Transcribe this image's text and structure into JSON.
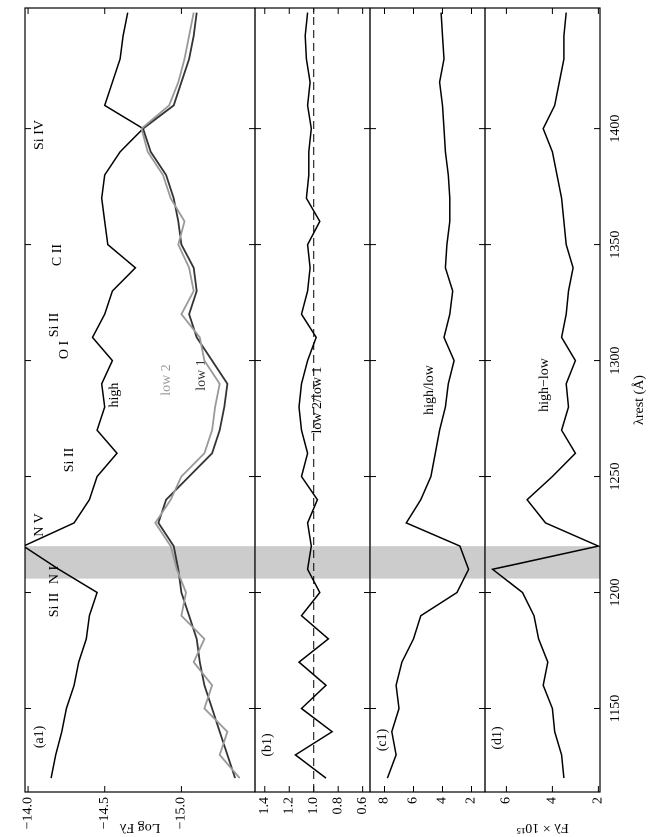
{
  "chart_data": [
    {
      "type": "line",
      "label": "(a1)",
      "ylabel": "Log Fλ",
      "x": [
        1120,
        1130,
        1140,
        1150,
        1160,
        1170,
        1180,
        1190,
        1200,
        1210,
        1220,
        1230,
        1240,
        1250,
        1260,
        1270,
        1280,
        1290,
        1300,
        1310,
        1320,
        1330,
        1340,
        1350,
        1360,
        1370,
        1380,
        1390,
        1400,
        1410,
        1420,
        1430,
        1440,
        1450
      ],
      "xlim": [
        1114,
        1452
      ],
      "xticks": [
        1150,
        1200,
        1250,
        1300,
        1350,
        1400
      ],
      "ylim": [
        -15.48,
        -13.98
      ],
      "yticks": [
        {
          "value": -15.0,
          "label": "−15.0"
        },
        {
          "value": -14.5,
          "label": "−14.5"
        },
        {
          "value": -14.0,
          "label": "−14.0"
        }
      ],
      "shaded_range": [
        1206,
        1220
      ],
      "series": [
        {
          "name": "high",
          "color": "#000000",
          "values": [
            -14.15,
            -14.18,
            -14.22,
            -14.25,
            -14.3,
            -14.33,
            -14.38,
            -14.4,
            -14.45,
            -14.2,
            -13.97,
            -14.3,
            -14.4,
            -14.45,
            -14.58,
            -14.45,
            -14.5,
            -14.48,
            -14.55,
            -14.42,
            -14.5,
            -14.55,
            -14.7,
            -14.52,
            -14.5,
            -14.48,
            -14.5,
            -14.6,
            -14.75,
            -14.5,
            -14.55,
            -14.6,
            -14.62,
            -14.65
          ]
        },
        {
          "name": "low 1",
          "color": "#333333",
          "values": [
            -15.35,
            -15.3,
            -15.25,
            -15.2,
            -15.15,
            -15.12,
            -15.1,
            -15.05,
            -15.0,
            -14.98,
            -14.95,
            -14.85,
            -14.9,
            -15.05,
            -15.2,
            -15.25,
            -15.28,
            -15.3,
            -15.2,
            -15.1,
            -15.05,
            -15.1,
            -15.08,
            -15.0,
            -14.98,
            -14.95,
            -14.9,
            -14.8,
            -14.75,
            -14.95,
            -15.0,
            -15.05,
            -15.08,
            -15.1
          ]
        },
        {
          "name": "low 2",
          "color": "#999999",
          "values": [
            -15.38,
            -15.25,
            -15.3,
            -15.15,
            -15.2,
            -15.08,
            -15.15,
            -15.0,
            -15.03,
            -14.97,
            -14.93,
            -14.83,
            -14.93,
            -15.0,
            -15.15,
            -15.2,
            -15.22,
            -15.25,
            -15.15,
            -15.12,
            -15.0,
            -15.08,
            -15.05,
            -14.98,
            -15.02,
            -14.93,
            -14.88,
            -14.78,
            -14.74,
            -14.92,
            -14.98,
            -15.02,
            -15.05,
            -15.08
          ]
        }
      ],
      "annotations": [
        "Si II",
        "N I",
        "N V",
        "Si II",
        "O I",
        "Si II",
        "C II",
        "Si IV"
      ]
    },
    {
      "type": "line",
      "label": "(b1)",
      "x": [
        1120,
        1130,
        1140,
        1150,
        1160,
        1170,
        1180,
        1190,
        1200,
        1210,
        1220,
        1230,
        1240,
        1250,
        1260,
        1270,
        1280,
        1290,
        1300,
        1310,
        1320,
        1330,
        1340,
        1350,
        1360,
        1370,
        1380,
        1390,
        1400,
        1410,
        1420,
        1430,
        1440,
        1450
      ],
      "xlim": [
        1114,
        1452
      ],
      "xticks": [
        1150,
        1200,
        1250,
        1300,
        1350,
        1400
      ],
      "ylim": [
        0.54,
        1.48
      ],
      "yticks": [
        0.6,
        0.8,
        {
          "value": 1,
          "label": "1.0"
        },
        1.2,
        1.4
      ],
      "shaded_range": [
        1206,
        1220
      ],
      "reference_line": 1,
      "series": [
        {
          "name": "low 2/low 1",
          "color": "#000000",
          "values": [
            0.9,
            1.15,
            0.85,
            1.1,
            0.9,
            1.12,
            0.88,
            1.1,
            0.95,
            1.05,
            1.02,
            1.05,
            0.97,
            1.1,
            1.05,
            1.1,
            1.12,
            1.1,
            1.05,
            0.98,
            1.1,
            1.05,
            1.03,
            1.05,
            0.95,
            1.06,
            1.04,
            1.04,
            1.02,
            1.05,
            1.03,
            1.06,
            1.07,
            1.05
          ]
        }
      ]
    },
    {
      "type": "line",
      "label": "(c1)",
      "x": [
        1120,
        1130,
        1140,
        1150,
        1160,
        1170,
        1180,
        1190,
        1200,
        1210,
        1220,
        1230,
        1240,
        1250,
        1260,
        1270,
        1280,
        1290,
        1300,
        1310,
        1320,
        1330,
        1340,
        1350,
        1360,
        1370,
        1380,
        1390,
        1400,
        1410,
        1420,
        1430,
        1440,
        1450
      ],
      "xlim": [
        1114,
        1452
      ],
      "xticks": [
        1150,
        1200,
        1250,
        1300,
        1350,
        1400
      ],
      "ylim": [
        1.07,
        9.0
      ],
      "yticks": [
        2,
        4,
        6,
        8
      ],
      "shaded_range": [
        1206,
        1220
      ],
      "series": [
        {
          "name": "high/low",
          "color": "#000000",
          "values": [
            7.8,
            7.2,
            7.5,
            7.0,
            7.2,
            6.8,
            6.0,
            5.5,
            3.0,
            2.2,
            2.8,
            6.5,
            5.5,
            4.8,
            4.5,
            4.2,
            3.8,
            3.6,
            3.2,
            3.9,
            3.5,
            3.3,
            3.8,
            3.7,
            3.5,
            3.5,
            3.6,
            3.8,
            3.9,
            4.0,
            4.2,
            3.9,
            4.0,
            4.1
          ]
        }
      ]
    },
    {
      "type": "line",
      "label": "(d1)",
      "ylabel": "Fλ × 10¹⁵",
      "xlabel": "λrest (Å)",
      "x": [
        1120,
        1130,
        1140,
        1150,
        1160,
        1170,
        1180,
        1190,
        1200,
        1210,
        1220,
        1230,
        1240,
        1250,
        1260,
        1270,
        1280,
        1290,
        1300,
        1310,
        1320,
        1330,
        1340,
        1350,
        1360,
        1370,
        1380,
        1390,
        1400,
        1410,
        1420,
        1430,
        1440,
        1450
      ],
      "xlim": [
        1114,
        1452
      ],
      "xticks": [
        1150,
        1200,
        1250,
        1300,
        1350,
        1400
      ],
      "ylim": [
        1.93,
        6.93
      ],
      "yticks": [
        2,
        4,
        6
      ],
      "shaded_range": [
        1206,
        1220
      ],
      "series": [
        {
          "name": "high−low",
          "color": "#000000",
          "values": [
            3.5,
            3.6,
            3.9,
            4.0,
            4.4,
            4.2,
            4.6,
            4.8,
            5.3,
            6.6,
            2.0,
            4.3,
            5.1,
            4.0,
            3.0,
            3.6,
            3.3,
            3.4,
            3.0,
            3.6,
            3.4,
            3.3,
            3.1,
            3.4,
            3.5,
            3.6,
            3.8,
            4.0,
            4.4,
            3.9,
            3.7,
            3.5,
            3.5,
            3.4
          ]
        }
      ]
    }
  ]
}
